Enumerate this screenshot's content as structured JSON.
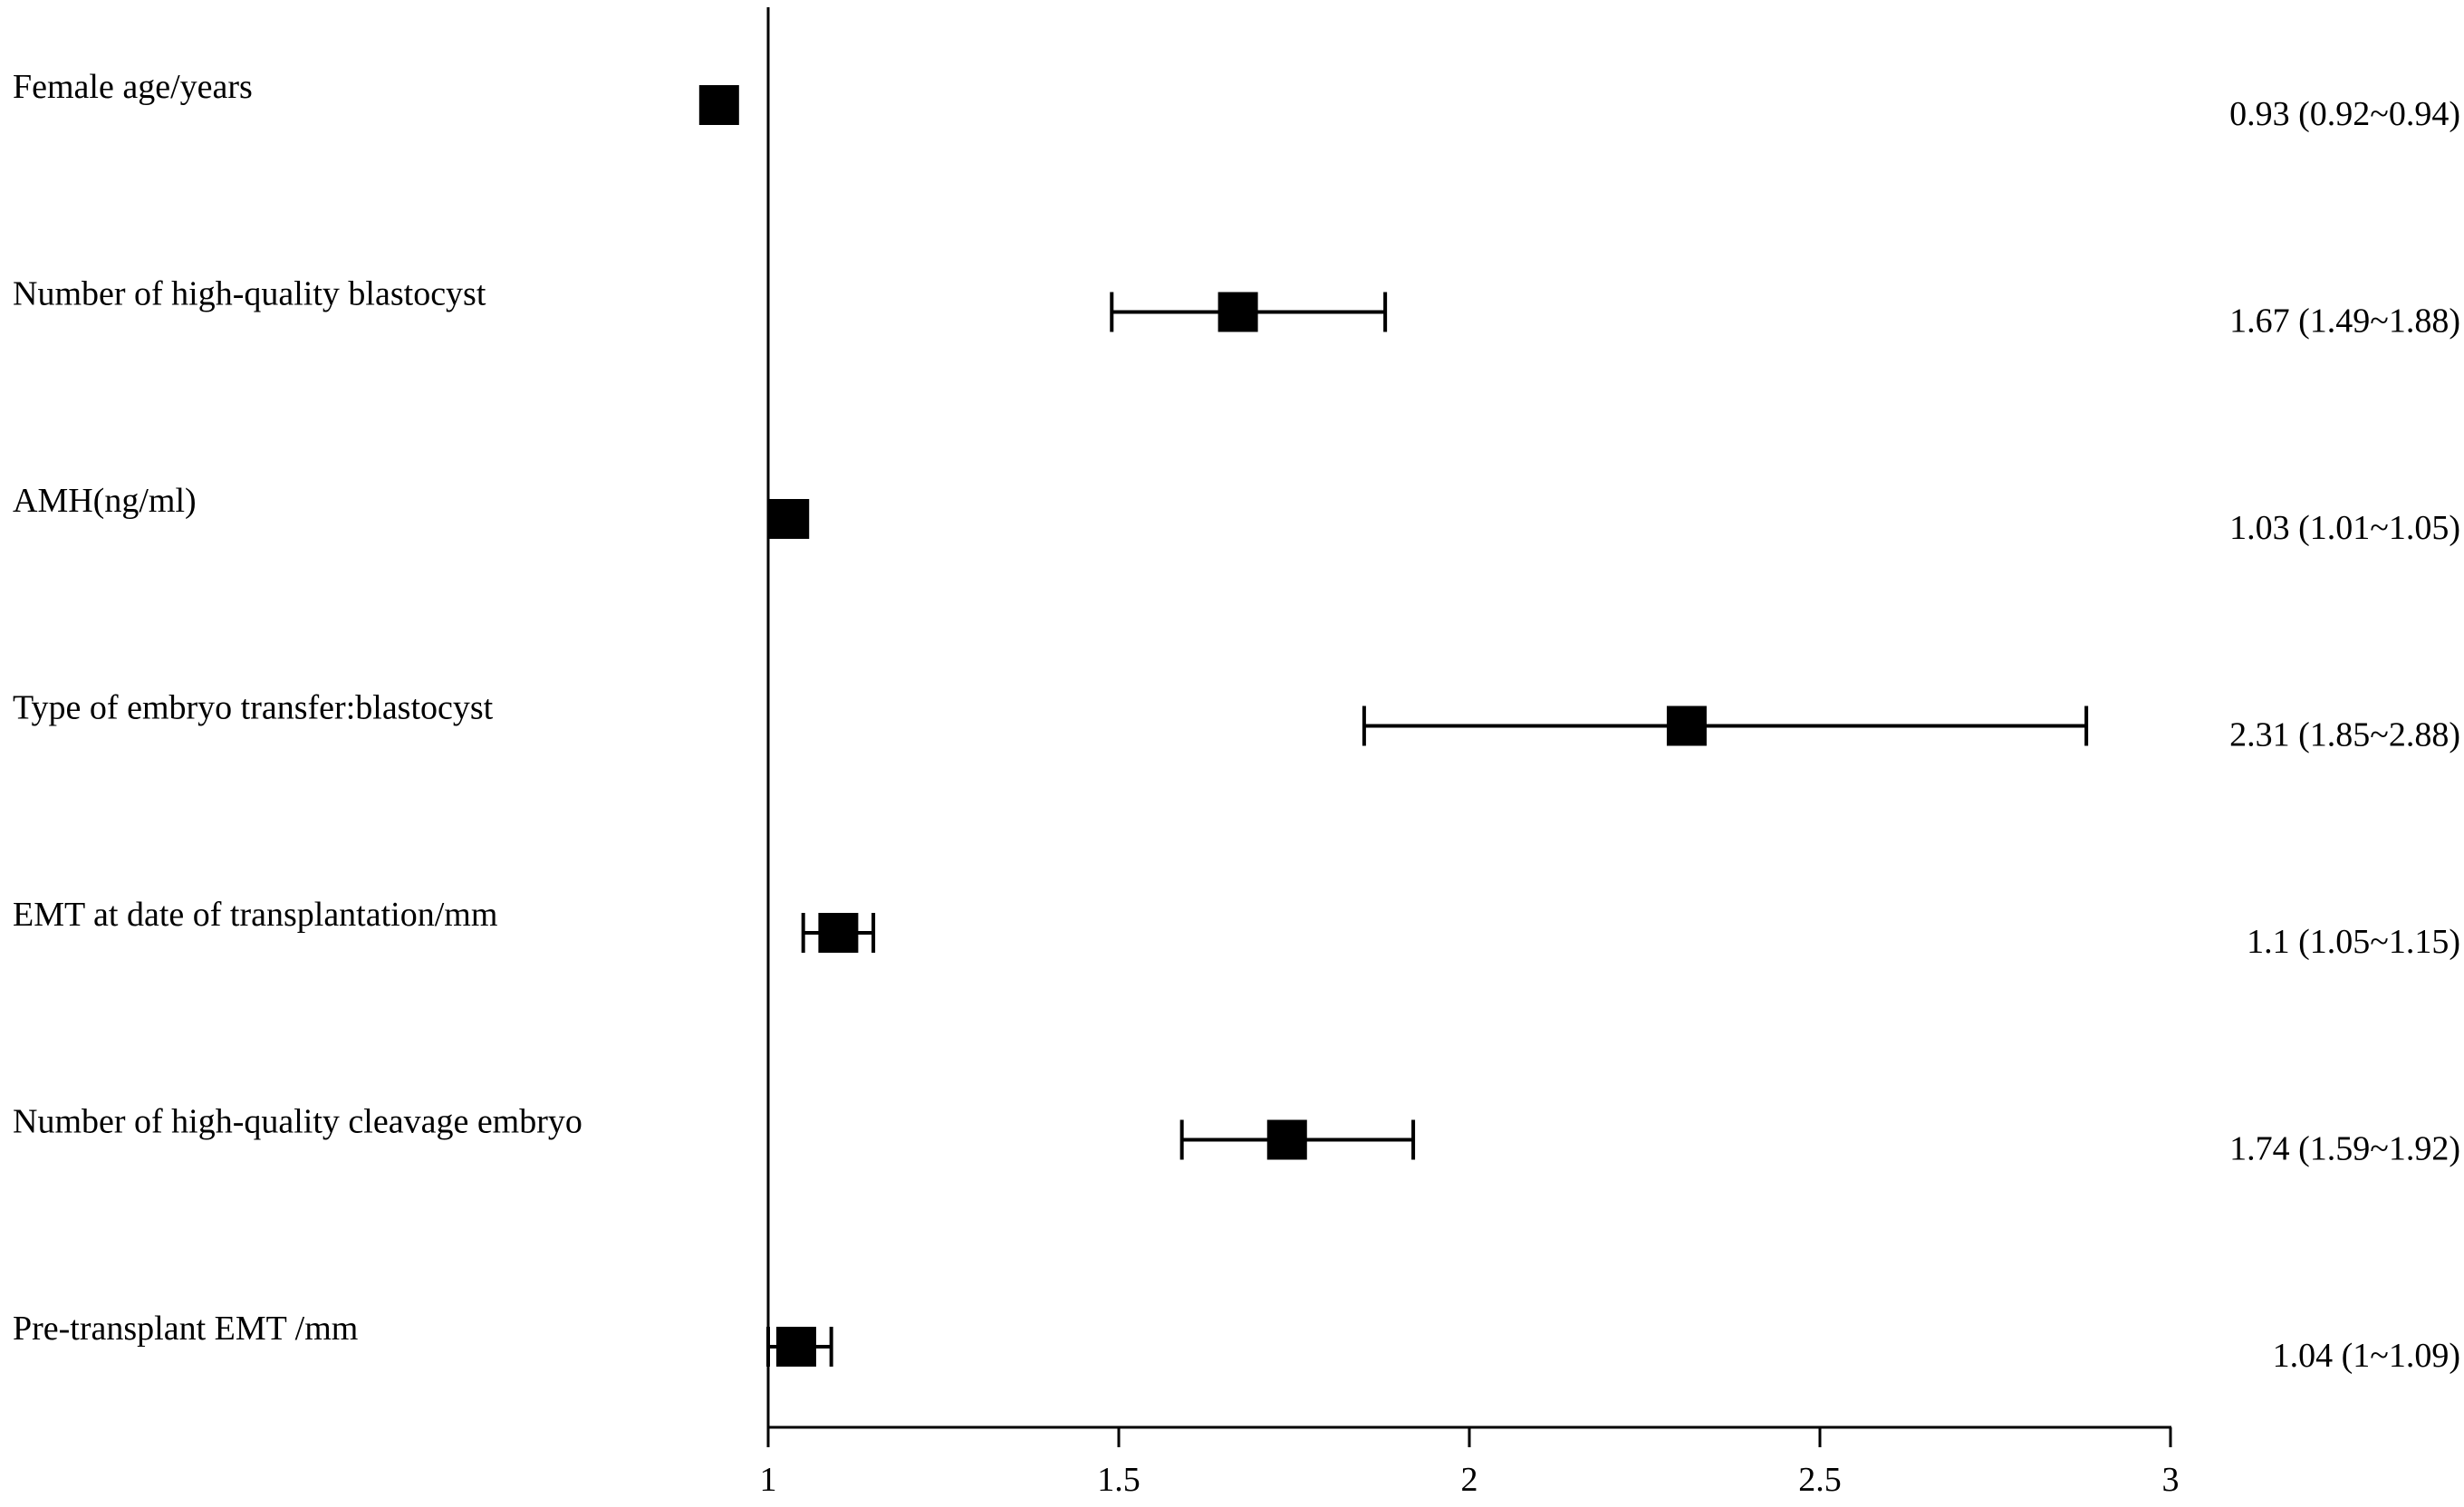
{
  "chart_data": {
    "type": "forest",
    "title": "",
    "xlabel": "",
    "ylabel": "",
    "xlim": [
      1,
      3
    ],
    "reference_line": 1,
    "x_ticks": [
      1,
      1.5,
      2,
      2.5,
      3
    ],
    "x_tick_labels": [
      "1",
      "1.5",
      "2",
      "2.5",
      "3"
    ],
    "grid": false,
    "rows": [
      {
        "label": "Female age/years",
        "estimate": 0.93,
        "lower": 0.92,
        "upper": 0.94,
        "text": "0.93 (0.92~0.94)"
      },
      {
        "label": "Number of high-quality blastocyst",
        "estimate": 1.67,
        "lower": 1.49,
        "upper": 1.88,
        "text": "1.67 (1.49~1.88)"
      },
      {
        "label": "AMH(ng/ml)",
        "estimate": 1.03,
        "lower": 1.01,
        "upper": 1.05,
        "text": "1.03 (1.01~1.05)"
      },
      {
        "label": "Type of embryo transfer:blastocyst",
        "estimate": 2.31,
        "lower": 1.85,
        "upper": 2.88,
        "text": "2.31 (1.85~2.88)"
      },
      {
        "label": "EMT at date of transplantation/mm",
        "estimate": 1.1,
        "lower": 1.05,
        "upper": 1.15,
        "text": "1.1 (1.05~1.15)"
      },
      {
        "label": "Number of high-quality cleavage embryo",
        "estimate": 1.74,
        "lower": 1.59,
        "upper": 1.92,
        "text": "1.74 (1.59~1.92)"
      },
      {
        "label": "Pre-transplant EMT /mm",
        "estimate": 1.04,
        "lower": 1,
        "upper": 1.09,
        "text": "1.04 (1~1.09)"
      }
    ]
  }
}
